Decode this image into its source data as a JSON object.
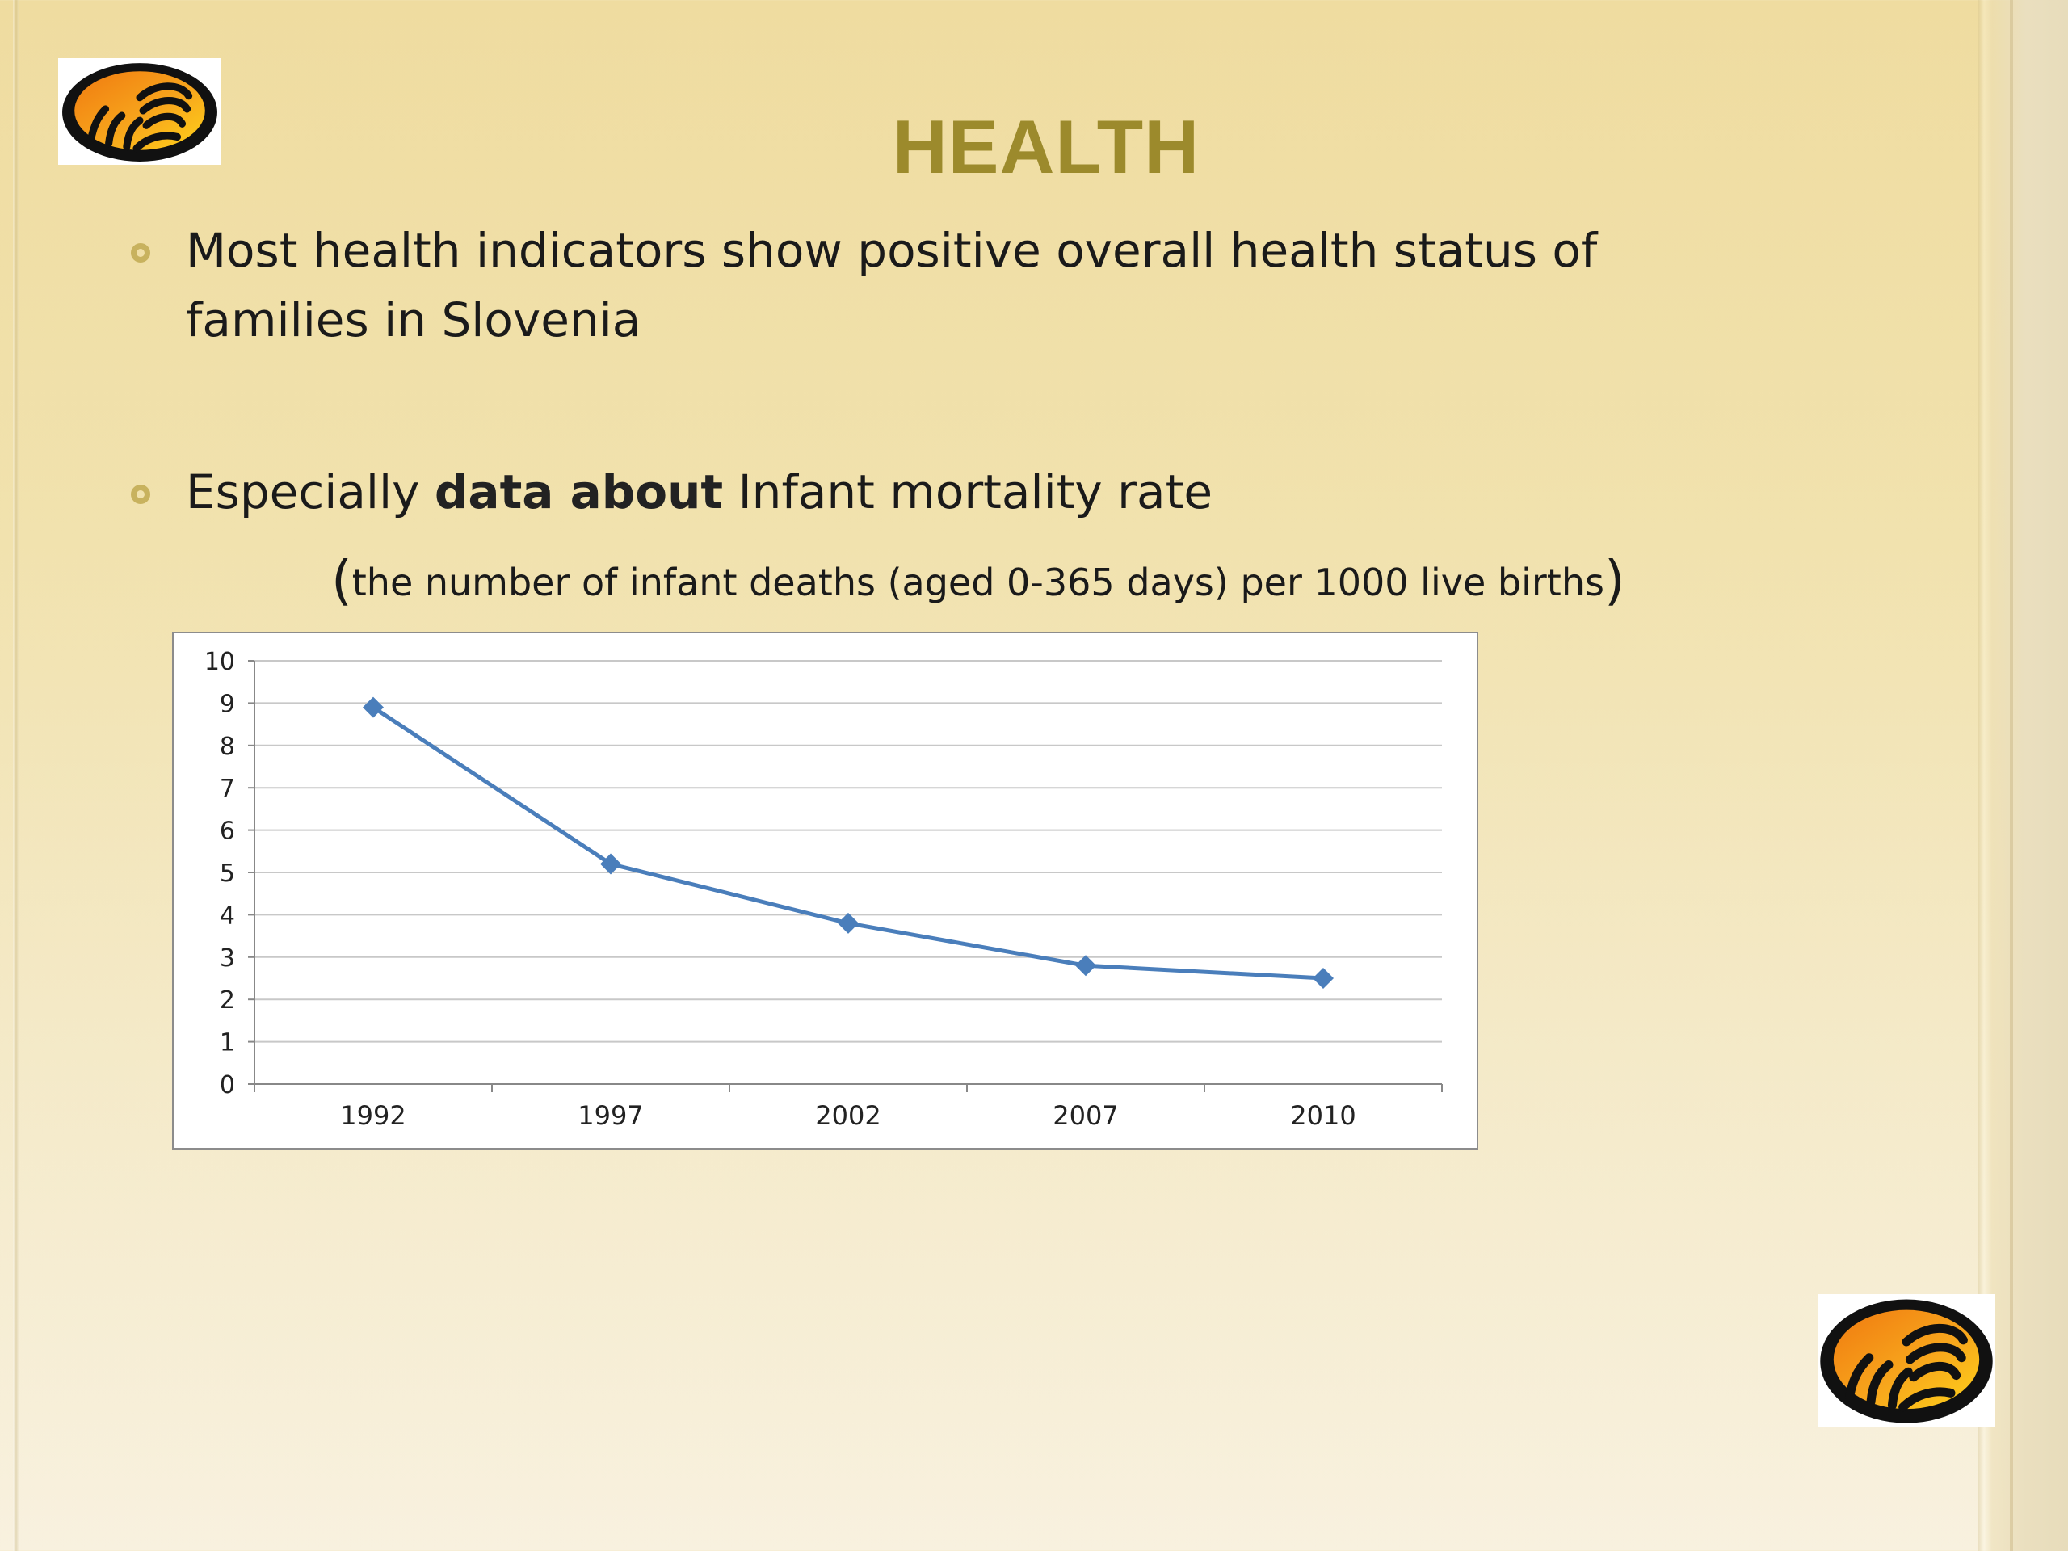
{
  "slide": {
    "title": "HEALTH",
    "bullets": [
      {
        "text_line1": "Most health indicators show positive overall health status of",
        "text_line2": "families in Slovenia"
      },
      {
        "text_before": "Especially ",
        "text_emph": "data about",
        "text_after": " Infant mortality rate"
      }
    ],
    "note": {
      "open": "(",
      "text": "the number of infant deaths (aged 0-365 days) per 1000 live births",
      "close": ")"
    },
    "logo_icon": "hands-logo-icon",
    "colors": {
      "title": "#9c8a2c",
      "bullet": "#c8b25e",
      "series": "#4a7ebb"
    }
  },
  "chart_data": {
    "type": "line",
    "categories": [
      "1992",
      "1997",
      "2002",
      "2007",
      "2010"
    ],
    "series": [
      {
        "values": [
          8.9,
          5.2,
          3.8,
          2.8,
          2.5
        ]
      }
    ],
    "ylim": [
      0,
      10
    ],
    "yticks": [
      "0",
      "1",
      "2",
      "3",
      "4",
      "5",
      "6",
      "7",
      "8",
      "9",
      "10"
    ],
    "grid": true,
    "marker": "diamond",
    "legend": "none",
    "title": "",
    "xlabel": "",
    "ylabel": ""
  }
}
